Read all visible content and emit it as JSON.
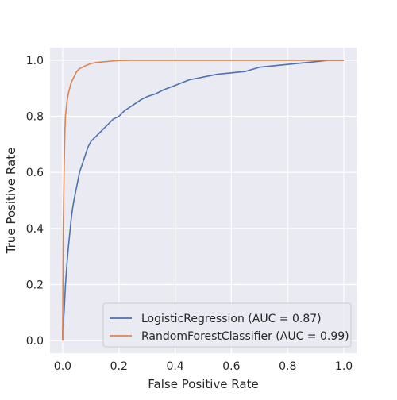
{
  "chart_data": {
    "type": "line",
    "title": "",
    "xlabel": "False Positive Rate",
    "ylabel": "True Positive Rate",
    "xlim": [
      -0.045,
      1.045
    ],
    "ylim": [
      -0.045,
      1.045
    ],
    "xticks": [
      0.0,
      0.2,
      0.4,
      0.6,
      0.8,
      1.0
    ],
    "yticks": [
      0.0,
      0.2,
      0.4,
      0.6,
      0.8,
      1.0
    ],
    "xtick_labels": [
      "0.0",
      "0.2",
      "0.4",
      "0.6",
      "0.8",
      "1.0"
    ],
    "ytick_labels": [
      "0.0",
      "0.2",
      "0.4",
      "0.6",
      "0.8",
      "1.0"
    ],
    "grid": true,
    "legend_position": "lower-right",
    "background_color": "#eaeaf2",
    "grid_color": "#ffffff",
    "series": [
      {
        "name": "LogisticRegression (AUC = 0.87)",
        "color": "#4c72b0",
        "x": [
          0.0,
          0.0,
          0.005,
          0.01,
          0.015,
          0.02,
          0.025,
          0.03,
          0.035,
          0.04,
          0.05,
          0.06,
          0.07,
          0.08,
          0.09,
          0.1,
          0.12,
          0.14,
          0.16,
          0.18,
          0.2,
          0.22,
          0.25,
          0.28,
          0.3,
          0.33,
          0.36,
          0.4,
          0.45,
          0.5,
          0.55,
          0.6,
          0.65,
          0.7,
          0.75,
          0.8,
          0.85,
          0.9,
          0.95,
          1.0
        ],
        "y": [
          0.0,
          0.04,
          0.1,
          0.2,
          0.27,
          0.33,
          0.38,
          0.43,
          0.47,
          0.5,
          0.55,
          0.6,
          0.63,
          0.66,
          0.69,
          0.71,
          0.73,
          0.75,
          0.77,
          0.79,
          0.8,
          0.82,
          0.84,
          0.86,
          0.87,
          0.88,
          0.895,
          0.91,
          0.93,
          0.94,
          0.95,
          0.955,
          0.96,
          0.975,
          0.98,
          0.985,
          0.99,
          0.995,
          1.0,
          1.0
        ]
      },
      {
        "name": "RandomForestClassifier (AUC = 0.99)",
        "color": "#dd8452",
        "x": [
          0.0,
          0.0,
          0.002,
          0.005,
          0.008,
          0.01,
          0.015,
          0.02,
          0.025,
          0.03,
          0.04,
          0.05,
          0.06,
          0.08,
          0.1,
          0.12,
          0.15,
          0.2,
          0.25,
          0.3,
          0.5,
          0.7,
          0.9,
          1.0
        ],
        "y": [
          0.0,
          0.05,
          0.4,
          0.6,
          0.75,
          0.8,
          0.85,
          0.88,
          0.9,
          0.92,
          0.94,
          0.96,
          0.97,
          0.98,
          0.988,
          0.992,
          0.995,
          0.999,
          1.0,
          1.0,
          1.0,
          1.0,
          1.0,
          1.0
        ]
      }
    ]
  }
}
